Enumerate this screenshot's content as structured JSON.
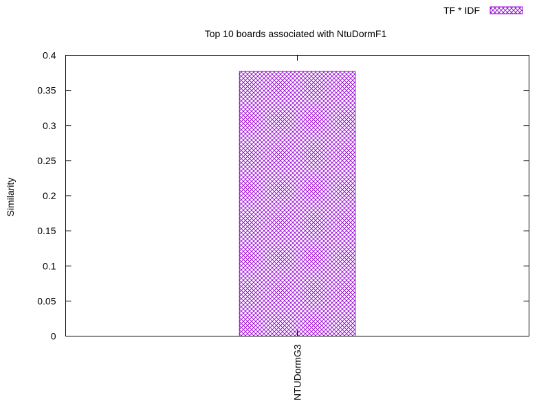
{
  "chart_data": {
    "type": "bar",
    "title": "Top 10 boards associated with NtuDormF1",
    "xlabel": "",
    "ylabel": "Similarity",
    "categories": [
      "NTUDormG3"
    ],
    "series": [
      {
        "name": "TF * IDF",
        "values": [
          0.377
        ]
      }
    ],
    "ylim": [
      0,
      0.4
    ],
    "yticks": [
      "0",
      "0.05",
      "0.1",
      "0.15",
      "0.2",
      "0.25",
      "0.3",
      "0.35",
      "0.4"
    ],
    "grid": false,
    "legend": "top-right",
    "colors": {
      "bar": "#9400d3",
      "axis": "#000000"
    }
  }
}
